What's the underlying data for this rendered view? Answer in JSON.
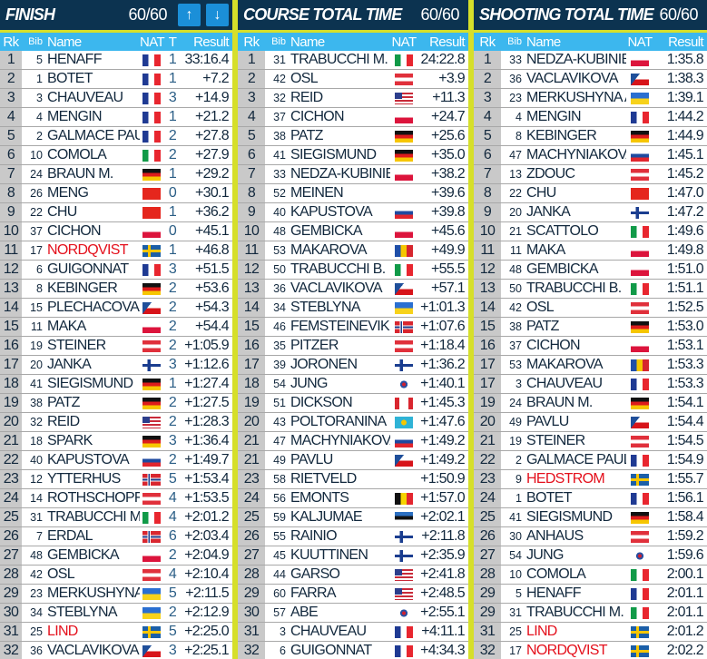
{
  "colors": {
    "header_bg": "#0c3350",
    "accent_yellow": "#d6df2a",
    "column_header": "#3cb7ee",
    "button": "#1b8fd8",
    "highlight_name": "#e4101c"
  },
  "columns": {
    "rk": "Rk",
    "bib": "Bib",
    "name": "Name",
    "nat": "NAT",
    "t": "T",
    "result": "Result"
  },
  "panels": [
    {
      "title": "FINISH",
      "count": "60/60",
      "has_t": true,
      "buttons": [
        {
          "icon": "arrow-up-icon",
          "glyph": "🡑"
        },
        {
          "icon": "arrow-down-icon",
          "glyph": "🡓"
        }
      ],
      "rows": [
        [
          "1",
          "5",
          "HENAFF",
          "FRA",
          "1",
          "33:16.4"
        ],
        [
          "2",
          "1",
          "BOTET",
          "FRA",
          "1",
          "+7.2"
        ],
        [
          "3",
          "3",
          "CHAUVEAU",
          "FRA",
          "3",
          "+14.9"
        ],
        [
          "4",
          "4",
          "MENGIN",
          "FRA",
          "1",
          "+21.2"
        ],
        [
          "5",
          "2",
          "GALMACE PAULIN",
          "FRA",
          "2",
          "+27.8"
        ],
        [
          "6",
          "10",
          "COMOLA",
          "ITA",
          "2",
          "+27.9"
        ],
        [
          "7",
          "24",
          "BRAUN M.",
          "GER",
          "1",
          "+29.2"
        ],
        [
          "8",
          "26",
          "MENG",
          "CHN",
          "0",
          "+30.1"
        ],
        [
          "9",
          "22",
          "CHU",
          "CHN",
          "1",
          "+36.2"
        ],
        [
          "10",
          "37",
          "CICHON",
          "POL",
          "0",
          "+45.1"
        ],
        [
          "11",
          "17",
          "NORDQVIST",
          "SWE",
          "1",
          "+46.8",
          "red"
        ],
        [
          "12",
          "6",
          "GUIGONNAT",
          "FRA",
          "3",
          "+51.5"
        ],
        [
          "13",
          "8",
          "KEBINGER",
          "GER",
          "2",
          "+53.6"
        ],
        [
          "14",
          "15",
          "PLECHACOVA",
          "CZE",
          "2",
          "+54.3"
        ],
        [
          "15",
          "11",
          "MAKA",
          "POL",
          "2",
          "+54.4"
        ],
        [
          "16",
          "19",
          "STEINER",
          "AUT",
          "2",
          "+1:05.9"
        ],
        [
          "17",
          "20",
          "JANKA",
          "FIN",
          "3",
          "+1:12.6"
        ],
        [
          "18",
          "41",
          "SIEGISMUND",
          "GER",
          "1",
          "+1:27.4"
        ],
        [
          "19",
          "38",
          "PATZ",
          "GER",
          "2",
          "+1:27.5"
        ],
        [
          "20",
          "32",
          "REID",
          "USA",
          "2",
          "+1:28.3"
        ],
        [
          "21",
          "18",
          "SPARK",
          "GER",
          "3",
          "+1:36.4"
        ],
        [
          "22",
          "40",
          "KAPUSTOVA",
          "SVK",
          "2",
          "+1:49.7"
        ],
        [
          "23",
          "12",
          "YTTERHUS",
          "NOR",
          "5",
          "+1:53.4"
        ],
        [
          "24",
          "14",
          "ROTHSCHOPF",
          "AUT",
          "4",
          "+1:53.5"
        ],
        [
          "25",
          "31",
          "TRABUCCHI M.",
          "ITA",
          "4",
          "+2:01.2"
        ],
        [
          "26",
          "7",
          "ERDAL",
          "NOR",
          "6",
          "+2:03.4"
        ],
        [
          "27",
          "48",
          "GEMBICKA",
          "POL",
          "2",
          "+2:04.9"
        ],
        [
          "28",
          "42",
          "OSL",
          "AUT",
          "4",
          "+2:10.4"
        ],
        [
          "29",
          "23",
          "MERKUSHYNA A",
          "UKR",
          "5",
          "+2:11.5"
        ],
        [
          "30",
          "34",
          "STEBLYNA",
          "UKR",
          "2",
          "+2:12.9"
        ],
        [
          "31",
          "25",
          "LIND",
          "SWE",
          "5",
          "+2:25.0",
          "red"
        ],
        [
          "32",
          "36",
          "VACLAVIKOVA",
          "CZE",
          "3",
          "+2:25.1"
        ]
      ]
    },
    {
      "title": "COURSE TOTAL TIME",
      "count": "60/60",
      "has_t": false,
      "buttons": [],
      "rows": [
        [
          "1",
          "31",
          "TRABUCCHI M.",
          "ITA",
          "",
          "24:22.8"
        ],
        [
          "2",
          "42",
          "OSL",
          "AUT",
          "",
          "+3.9"
        ],
        [
          "3",
          "32",
          "REID",
          "USA",
          "",
          "+11.3"
        ],
        [
          "4",
          "37",
          "CICHON",
          "POL",
          "",
          "+24.7"
        ],
        [
          "5",
          "38",
          "PATZ",
          "GER",
          "",
          "+25.6"
        ],
        [
          "6",
          "41",
          "SIEGISMUND",
          "GER",
          "",
          "+35.0"
        ],
        [
          "7",
          "33",
          "NEDZA-KUBINIEC",
          "POL",
          "",
          "+38.2"
        ],
        [
          "8",
          "52",
          "MEINEN",
          "SUI",
          "",
          "+39.6"
        ],
        [
          "9",
          "40",
          "KAPUSTOVA",
          "SVK",
          "",
          "+39.8"
        ],
        [
          "10",
          "48",
          "GEMBICKA",
          "POL",
          "",
          "+45.6"
        ],
        [
          "11",
          "53",
          "MAKAROVA",
          "MDA",
          "",
          "+49.9"
        ],
        [
          "12",
          "50",
          "TRABUCCHI B.",
          "ITA",
          "",
          "+55.5"
        ],
        [
          "13",
          "36",
          "VACLAVIKOVA",
          "CZE",
          "",
          "+57.1"
        ],
        [
          "14",
          "34",
          "STEBLYNA",
          "UKR",
          "",
          "+1:01.3"
        ],
        [
          "15",
          "46",
          "FEMSTEINEVIK",
          "NOR",
          "",
          "+1:07.6"
        ],
        [
          "16",
          "35",
          "PITZER",
          "AUT",
          "",
          "+1:18.4"
        ],
        [
          "17",
          "39",
          "JORONEN",
          "FIN",
          "",
          "+1:36.2"
        ],
        [
          "18",
          "54",
          "JUNG",
          "KOR",
          "",
          "+1:40.1"
        ],
        [
          "19",
          "51",
          "DICKSON",
          "CAN",
          "",
          "+1:45.3"
        ],
        [
          "20",
          "43",
          "POLTORANINA",
          "KAZ",
          "",
          "+1:47.6"
        ],
        [
          "21",
          "47",
          "MACHYNIAKOVA.",
          "SVK",
          "",
          "+1:49.2"
        ],
        [
          "21",
          "49",
          "PAVLU",
          "CZE",
          "",
          "+1:49.2"
        ],
        [
          "23",
          "58",
          "RIETVELD",
          "SUI",
          "",
          "+1:50.9"
        ],
        [
          "24",
          "56",
          "EMONTS",
          "BEL",
          "",
          "+1:57.0"
        ],
        [
          "25",
          "59",
          "KALJUMAE",
          "EST",
          "",
          "+2:02.1"
        ],
        [
          "26",
          "55",
          "RAINIO",
          "FIN",
          "",
          "+2:11.8"
        ],
        [
          "27",
          "45",
          "KUUTTINEN",
          "FIN",
          "",
          "+2:35.9"
        ],
        [
          "28",
          "44",
          "GARSO",
          "USA",
          "",
          "+2:41.8"
        ],
        [
          "29",
          "60",
          "FARRA",
          "USA",
          "",
          "+2:48.5"
        ],
        [
          "30",
          "57",
          "ABE",
          "KOR",
          "",
          "+2:55.1"
        ],
        [
          "31",
          "3",
          "CHAUVEAU",
          "FRA",
          "",
          "+4:11.1"
        ],
        [
          "32",
          "6",
          "GUIGONNAT",
          "FRA",
          "",
          "+4:34.3"
        ]
      ]
    },
    {
      "title": "SHOOTING TOTAL TIME",
      "count": "60/60",
      "has_t": false,
      "buttons": [],
      "rows": [
        [
          "1",
          "33",
          "NEDZA-KUBINIEC",
          "POL",
          "",
          "1:35.8"
        ],
        [
          "2",
          "36",
          "VACLAVIKOVA",
          "CZE",
          "",
          "1:38.3"
        ],
        [
          "3",
          "23",
          "MERKUSHYNA A.",
          "UKR",
          "",
          "1:39.1"
        ],
        [
          "4",
          "4",
          "MENGIN",
          "FRA",
          "",
          "1:44.2"
        ],
        [
          "5",
          "8",
          "KEBINGER",
          "GER",
          "",
          "1:44.9"
        ],
        [
          "6",
          "47",
          "MACHYNIAKOVA.",
          "SVK",
          "",
          "1:45.1"
        ],
        [
          "7",
          "13",
          "ZDOUC",
          "AUT",
          "",
          "1:45.2"
        ],
        [
          "8",
          "22",
          "CHU",
          "CHN",
          "",
          "1:47.0"
        ],
        [
          "9",
          "20",
          "JANKA",
          "FIN",
          "",
          "1:47.2"
        ],
        [
          "10",
          "21",
          "SCATTOLO",
          "ITA",
          "",
          "1:49.6"
        ],
        [
          "11",
          "11",
          "MAKA",
          "POL",
          "",
          "1:49.8"
        ],
        [
          "12",
          "48",
          "GEMBICKA",
          "POL",
          "",
          "1:51.0"
        ],
        [
          "13",
          "50",
          "TRABUCCHI B.",
          "ITA",
          "",
          "1:51.1"
        ],
        [
          "14",
          "42",
          "OSL",
          "AUT",
          "",
          "1:52.5"
        ],
        [
          "15",
          "38",
          "PATZ",
          "GER",
          "",
          "1:53.0"
        ],
        [
          "16",
          "37",
          "CICHON",
          "POL",
          "",
          "1:53.1"
        ],
        [
          "17",
          "53",
          "MAKAROVA",
          "MDA",
          "",
          "1:53.3"
        ],
        [
          "17",
          "3",
          "CHAUVEAU",
          "FRA",
          "",
          "1:53.3"
        ],
        [
          "19",
          "24",
          "BRAUN M.",
          "GER",
          "",
          "1:54.1"
        ],
        [
          "20",
          "49",
          "PAVLU",
          "CZE",
          "",
          "1:54.4"
        ],
        [
          "21",
          "19",
          "STEINER",
          "AUT",
          "",
          "1:54.5"
        ],
        [
          "22",
          "2",
          "GALMACE PAULIN",
          "FRA",
          "",
          "1:54.9"
        ],
        [
          "23",
          "9",
          "HEDSTROM",
          "SWE",
          "",
          "1:55.7",
          "red"
        ],
        [
          "24",
          "1",
          "BOTET",
          "FRA",
          "",
          "1:56.1"
        ],
        [
          "25",
          "41",
          "SIEGISMUND",
          "GER",
          "",
          "1:58.4"
        ],
        [
          "26",
          "30",
          "ANHAUS",
          "AUT",
          "",
          "1:59.2"
        ],
        [
          "27",
          "54",
          "JUNG",
          "KOR",
          "",
          "1:59.6"
        ],
        [
          "28",
          "10",
          "COMOLA",
          "ITA",
          "",
          "2:00.1"
        ],
        [
          "29",
          "5",
          "HENAFF",
          "FRA",
          "",
          "2:01.1"
        ],
        [
          "29",
          "31",
          "TRABUCCHI M.",
          "ITA",
          "",
          "2:01.1"
        ],
        [
          "31",
          "25",
          "LIND",
          "SWE",
          "",
          "2:01.2",
          "red"
        ],
        [
          "32",
          "17",
          "NORDQVIST",
          "SWE",
          "",
          "2:02.2",
          "red"
        ]
      ]
    }
  ]
}
